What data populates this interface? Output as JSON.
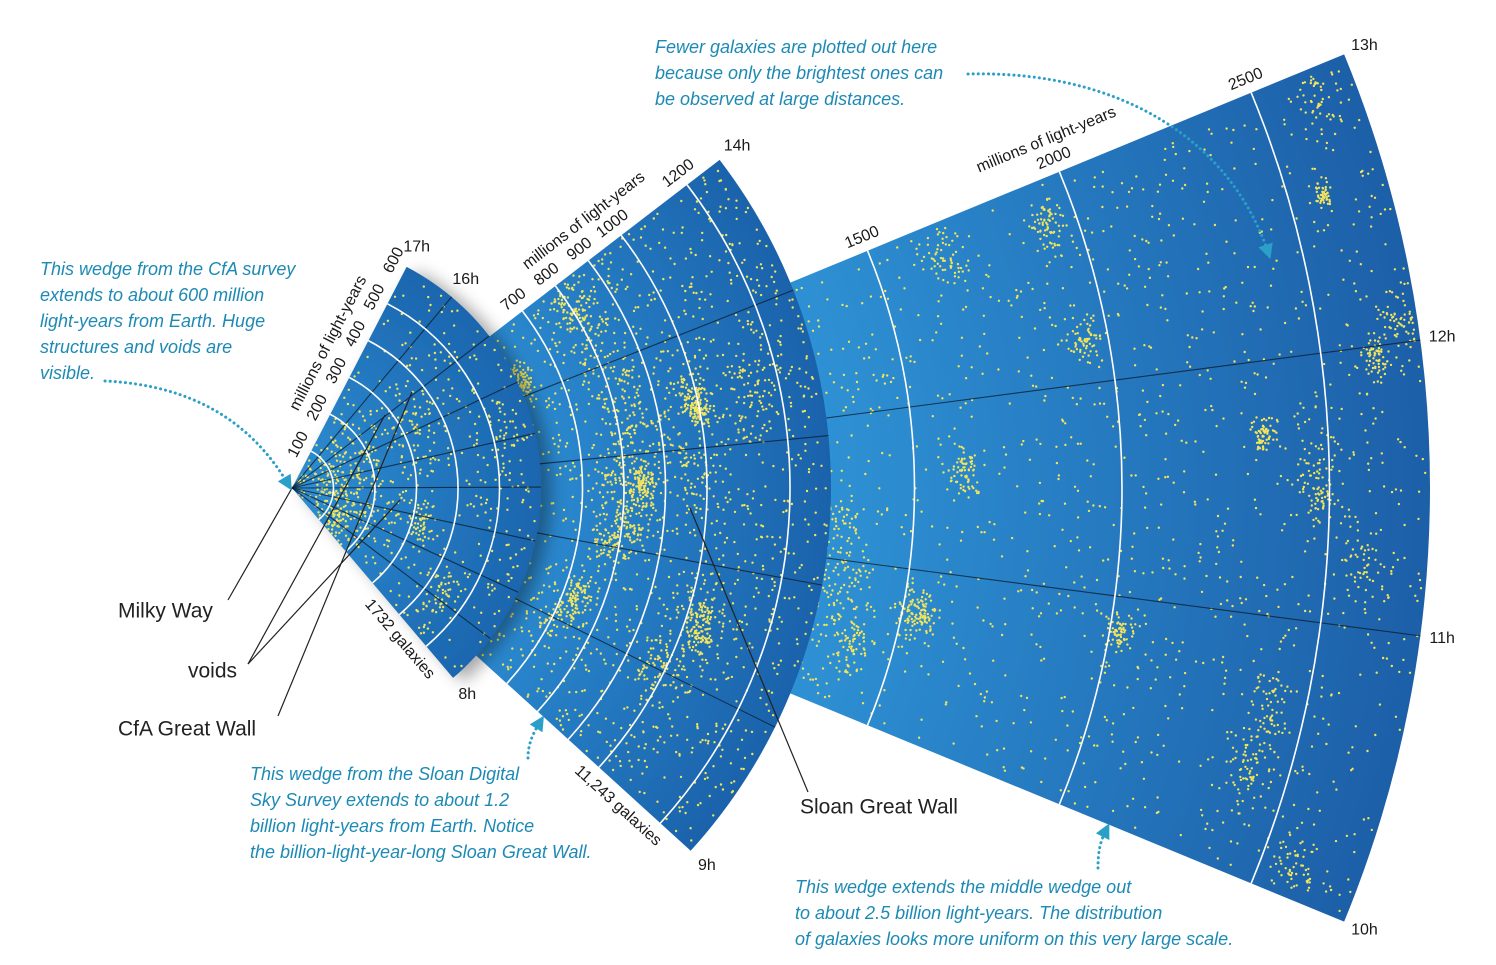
{
  "wedges": [
    {
      "hour_labels": [
        "17h",
        "16h",
        "8h"
      ],
      "distance_ticks": [
        100,
        200,
        300,
        400,
        500,
        600
      ],
      "axis_label": "millions of light-years",
      "count_label": "1732 galaxies"
    },
    {
      "hour_labels": [
        "14h",
        "9h"
      ],
      "distance_ticks": [
        700,
        800,
        900,
        1000,
        1200
      ],
      "axis_label": "millions of light-years",
      "count_label": "11,243 galaxies"
    },
    {
      "hour_labels": [
        "13h",
        "12h",
        "11h",
        "10h"
      ],
      "distance_ticks": [
        1500,
        2000,
        2500
      ],
      "axis_label": "millions of light-years"
    }
  ],
  "labels": [
    "Milky Way",
    "voids",
    "CfA Great Wall",
    "Sloan Great Wall"
  ],
  "callouts": [
    {
      "lines": [
        "This wedge from the CfA survey",
        "extends to about 600 million",
        "light-years from Earth. Huge",
        "structures and voids are",
        "visible."
      ]
    },
    {
      "lines": [
        "Fewer galaxies are plotted out here",
        "because only the brightest ones can",
        "be observed at large distances."
      ]
    },
    {
      "lines": [
        "This wedge from the Sloan Digital",
        "Sky Survey extends to about 1.2",
        "billion light-years from Earth. Notice",
        "the billion-light-year-long Sloan Great Wall."
      ]
    },
    {
      "lines": [
        "This wedge extends the middle wedge out",
        "to about 2.5 billion light-years. The distribution",
        "of galaxies looks more uniform on this very large scale."
      ]
    }
  ]
}
